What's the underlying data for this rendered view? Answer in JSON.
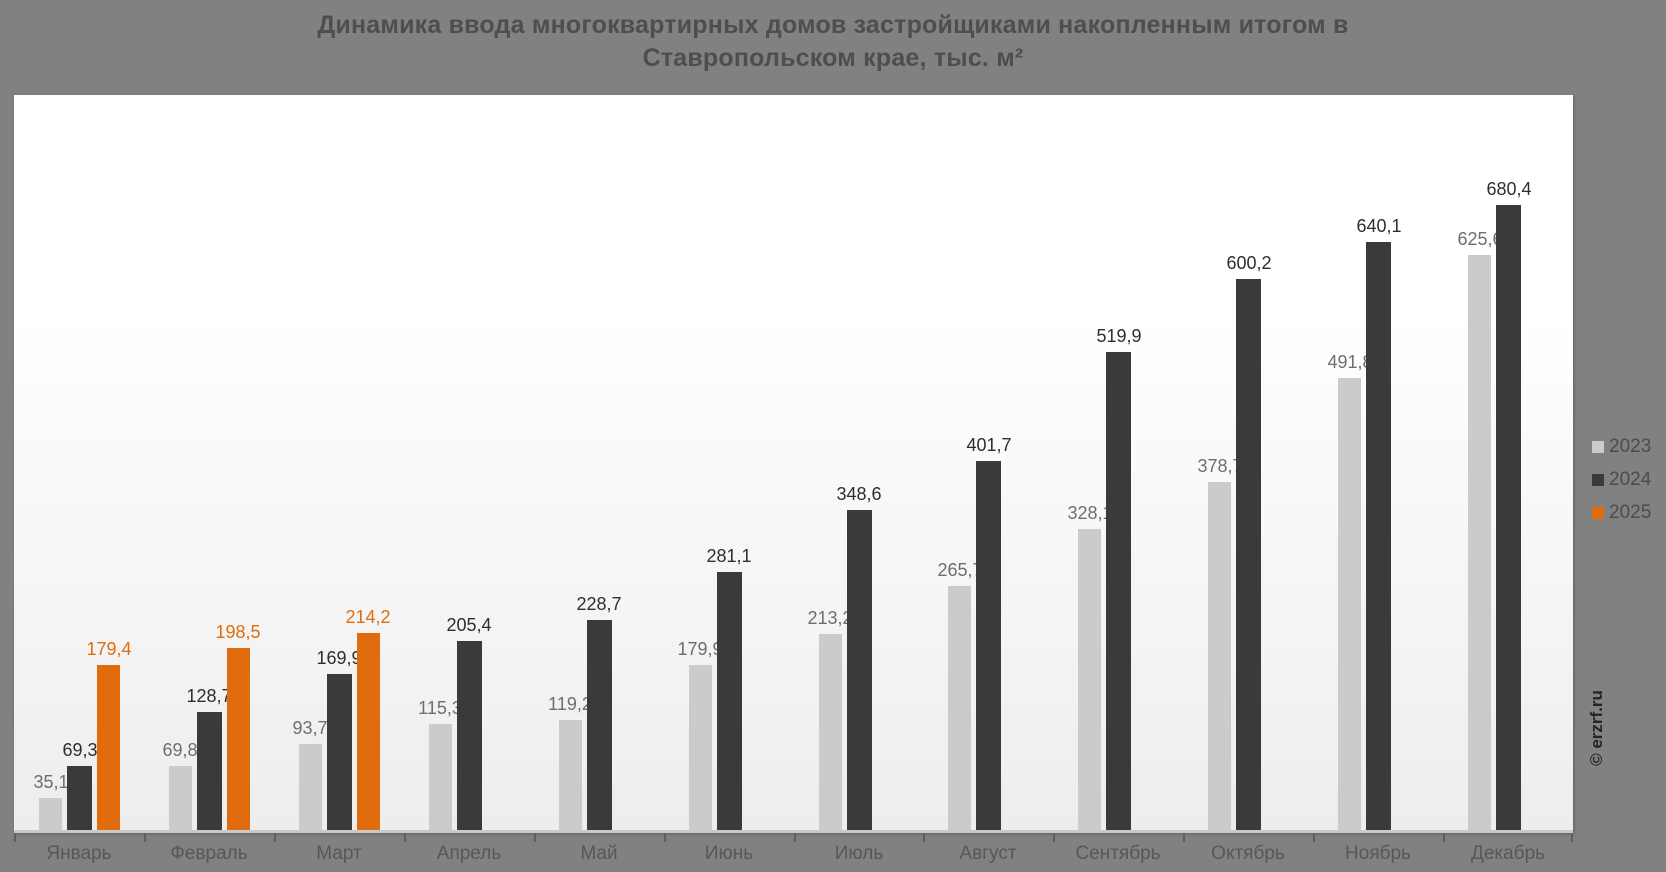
{
  "page": {
    "background_color": "#818181"
  },
  "title": {
    "line1": "Динамика ввода многоквартирных домов застройщиками накопленным итогом в",
    "line2": "Ставропольском крае, тыс. м²"
  },
  "watermark": "© erzrf.ru",
  "legend": {
    "position": "right",
    "items": [
      {
        "label": "2023",
        "color": "#cbcbcb"
      },
      {
        "label": "2024",
        "color": "#3a3a3a"
      },
      {
        "label": "2025",
        "color": "#e06c0d"
      }
    ]
  },
  "chart_data": {
    "type": "bar",
    "title": "Динамика ввода многоквартирных домов застройщиками накопленным итогом в Ставропольском крае, тыс. м²",
    "categories": [
      "Январь",
      "Февраль",
      "Март",
      "Апрель",
      "Май",
      "Июнь",
      "Июль",
      "Август",
      "Сентябрь",
      "Октябрь",
      "Ноябрь",
      "Декабрь"
    ],
    "series": [
      {
        "name": "2023",
        "color": "#cbcbcb",
        "label_color": "#6e6e6e",
        "values": [
          35.1,
          69.8,
          93.7,
          115.3,
          119.2,
          179.9,
          213.2,
          265.7,
          328.1,
          378.7,
          491.8,
          625.6
        ]
      },
      {
        "name": "2024",
        "color": "#3a3a3a",
        "label_color": "#2e2e2e",
        "values": [
          69.3,
          128.7,
          169.9,
          205.4,
          228.7,
          281.1,
          348.6,
          401.7,
          519.9,
          600.2,
          640.1,
          680.4
        ]
      },
      {
        "name": "2025",
        "color": "#e06c0d",
        "label_color": "#e06c0d",
        "values": [
          179.4,
          198.5,
          214.2,
          null,
          null,
          null,
          null,
          null,
          null,
          null,
          null,
          null
        ]
      }
    ],
    "ylim": [
      0,
      800
    ],
    "grid": false,
    "data_labels": true,
    "decimal_separator": ",",
    "legend_position": "right"
  }
}
